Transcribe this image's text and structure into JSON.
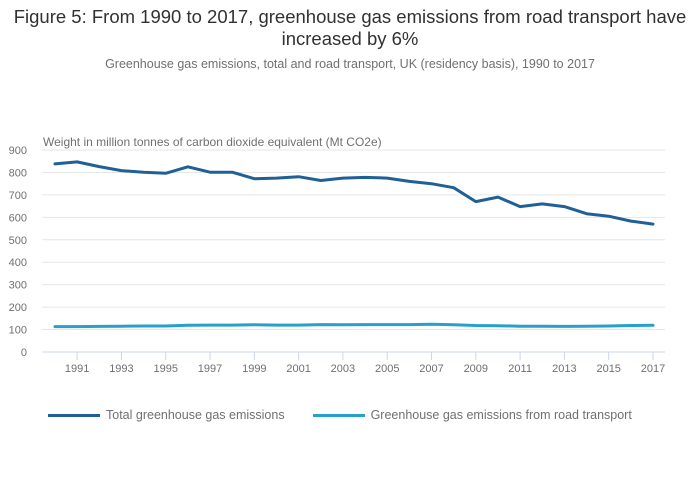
{
  "chart_data": {
    "type": "line",
    "title": "Figure 5: From 1990 to 2017, greenhouse gas emissions from road transport have increased by 6%",
    "subtitle": "Greenhouse gas emissions, total and road transport, UK (residency basis), 1990 to 2017",
    "ylabel": "Weight in million tonnes of carbon dioxide equivalent (Mt CO2e)",
    "xlabel": "",
    "ylim": [
      0,
      900
    ],
    "yticks": [
      0,
      100,
      200,
      300,
      400,
      500,
      600,
      700,
      800,
      900
    ],
    "xticks": [
      1991,
      1993,
      1995,
      1997,
      1999,
      2001,
      2003,
      2005,
      2007,
      2009,
      2011,
      2013,
      2015,
      2017
    ],
    "grid": true,
    "legend_position": "bottom",
    "x": [
      1990,
      1991,
      1992,
      1993,
      1994,
      1995,
      1996,
      1997,
      1998,
      1999,
      2000,
      2001,
      2002,
      2003,
      2004,
      2005,
      2006,
      2007,
      2008,
      2009,
      2010,
      2011,
      2012,
      2013,
      2014,
      2015,
      2016,
      2017
    ],
    "series": [
      {
        "name": "Total greenhouse gas emissions",
        "color": "#206095",
        "values": [
          838,
          847,
          826,
          808,
          801,
          796,
          825,
          801,
          801,
          772,
          775,
          781,
          764,
          775,
          778,
          775,
          760,
          750,
          732,
          670,
          690,
          648,
          660,
          648,
          616,
          605,
          583,
          570
        ]
      },
      {
        "name": "Greenhouse gas emissions from road transport",
        "color": "#27a0cc",
        "values": [
          113,
          113,
          114,
          115,
          116,
          116,
          119,
          120,
          120,
          121,
          120,
          120,
          122,
          121,
          122,
          122,
          122,
          124,
          121,
          118,
          117,
          115,
          115,
          114,
          115,
          116,
          118,
          119
        ]
      }
    ]
  }
}
